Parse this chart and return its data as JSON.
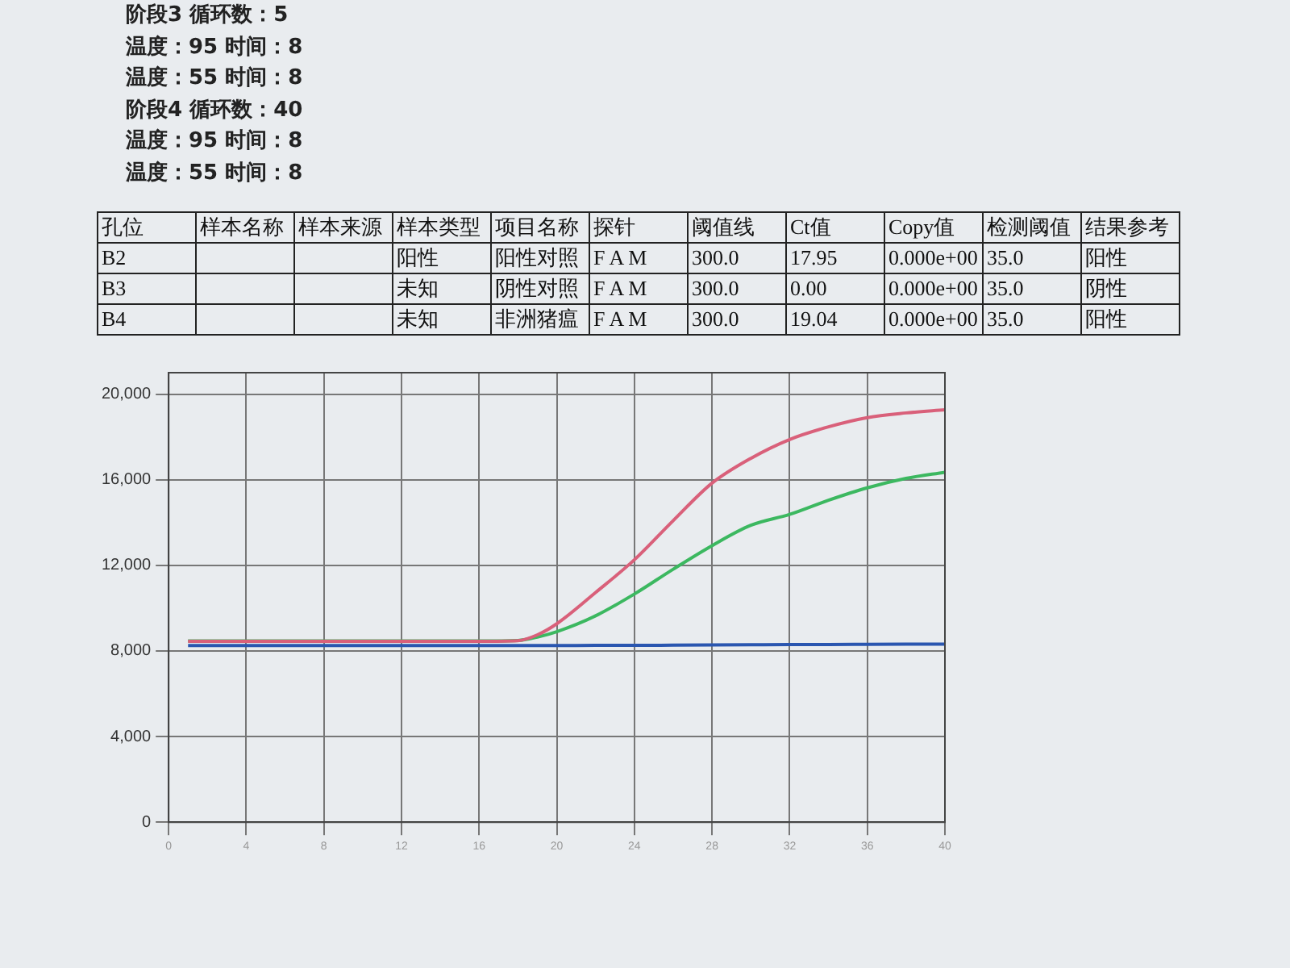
{
  "chart_data": [
    {
      "type": "other",
      "annotations": [
        "阶段3  循环数：5",
        "温度：95 时间：8",
        "温度：55 时间：8",
        "阶段4  循环数：40",
        "温度：95 时间：8",
        "温度：55 时间：8"
      ]
    },
    {
      "type": "other",
      "categories": [
        "孔位",
        "样本名称",
        "样本来源",
        "样本类型",
        "项目名称",
        "探针",
        "阈值线",
        "Ct值",
        "Copy值",
        "检测阈值",
        "结果参考"
      ],
      "annotations": [
        "B2",
        null,
        null,
        "阳性",
        "阳性对照",
        "F A M",
        "300.0",
        "17.95",
        "0.000e+00",
        "35.0",
        "阳性",
        "B3",
        null,
        null,
        "未知",
        "阴性对照",
        "F A M",
        "300.0",
        "0.00",
        "0.000e+00",
        "35.0",
        "阴性",
        "B4",
        null,
        null,
        "未知",
        "非洲猪瘟",
        "F A M",
        "300.0",
        "19.04",
        "0.000e+00",
        "35.0",
        "阳性"
      ]
    },
    {
      "type": "line",
      "x": [
        1,
        4,
        8,
        12,
        16,
        18,
        19,
        20,
        22,
        24,
        26,
        28,
        30,
        32,
        34,
        36,
        38,
        40
      ],
      "series": [
        {
          "color": "#d9607a",
          "values": [
            8450,
            8450,
            8450,
            8450,
            8450,
            8480,
            8750,
            9270,
            10730,
            12260,
            14090,
            15840,
            17000,
            17880,
            18470,
            18900,
            19120,
            19270
          ]
        },
        {
          "color": "#3cb860",
          "values": [
            8470,
            8470,
            8470,
            8470,
            8470,
            8490,
            8650,
            8900,
            9640,
            10660,
            11820,
            12920,
            13870,
            14380,
            15040,
            15620,
            16060,
            16350
          ]
        },
        {
          "color": "#2a56b0",
          "values": [
            8250,
            8250,
            8250,
            8250,
            8250,
            8250,
            8250,
            8250,
            8260,
            8260,
            8270,
            8280,
            8290,
            8300,
            8300,
            8310,
            8320,
            8320
          ]
        }
      ],
      "xlim": [
        0,
        40
      ],
      "xticks": [
        0,
        4,
        8,
        12,
        16,
        20,
        24,
        28,
        32,
        36,
        40
      ],
      "ylim": [
        0,
        21000
      ],
      "yticks": [
        0,
        {
          "value": 4000,
          "label": "4,000"
        },
        {
          "value": 8000,
          "label": "8,000"
        },
        {
          "value": 12000,
          "label": "12,000"
        },
        {
          "value": 16000,
          "label": "16,000"
        },
        {
          "value": 20000,
          "label": "20,000"
        }
      ],
      "grid": true,
      "legend": false,
      "marker": "none",
      "line_style": "solid"
    }
  ]
}
